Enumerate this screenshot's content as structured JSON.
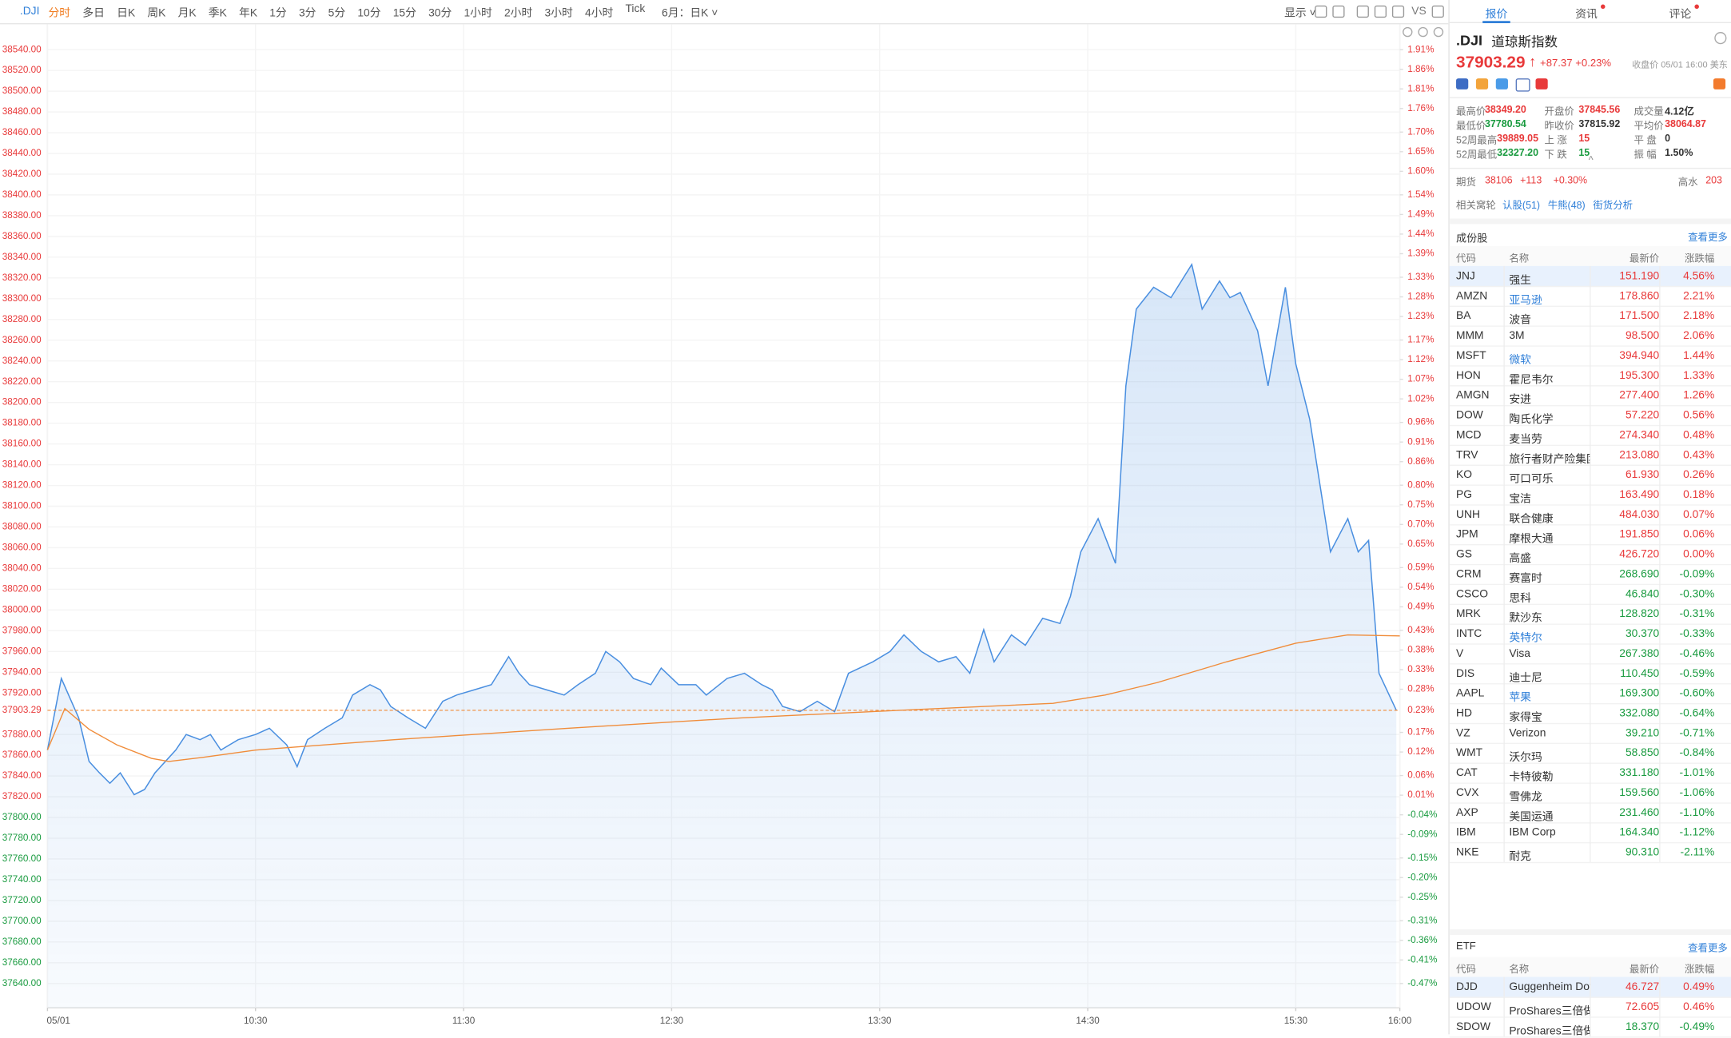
{
  "toolbar": {
    "symbol": ".DJI",
    "periods": [
      "分时",
      "多日",
      "日K",
      "周K",
      "月K",
      "季K",
      "年K",
      "1分",
      "3分",
      "5分",
      "10分",
      "15分",
      "30分",
      "1小时",
      "2小时",
      "3小时",
      "4小时",
      "Tick"
    ],
    "active_period": 0,
    "compare": "6月：日K",
    "display": "显示",
    "vs": "VS"
  },
  "chart_data": {
    "type": "line",
    "x": [
      0,
      4,
      9,
      12,
      15,
      18,
      21,
      25,
      28,
      31,
      34,
      37,
      40,
      44,
      47,
      50,
      55,
      60,
      64,
      69,
      72,
      75,
      80,
      85,
      88,
      93,
      96,
      99,
      104,
      109,
      114,
      118,
      123,
      128,
      133,
      136,
      139,
      144,
      149,
      153,
      158,
      161,
      165,
      169,
      174,
      177,
      182,
      187,
      190,
      196,
      201,
      206,
      209,
      212,
      217,
      222,
      227,
      231,
      238,
      243,
      247,
      252,
      257,
      262,
      266,
      270,
      273,
      278,
      282,
      287,
      292,
      295,
      298,
      303,
      308,
      311,
      314,
      319,
      324,
      330,
      333,
      338,
      341,
      344,
      349,
      352,
      357,
      360,
      364,
      367,
      370,
      375,
      378,
      381,
      384,
      389
    ],
    "series": [
      {
        "color": "#4a8fe0",
        "values": [
          37865,
          37934,
          37896,
          37854,
          37843,
          37833,
          37843,
          37822,
          37827,
          37843,
          37854,
          37865,
          37880,
          37875,
          37880,
          37865,
          37875,
          37880,
          37886,
          37870,
          37849,
          37875,
          37886,
          37896,
          37918,
          37928,
          37923,
          37907,
          37896,
          37886,
          37912,
          37918,
          37923,
          37928,
          37955,
          37939,
          37928,
          37923,
          37918,
          37928,
          37939,
          37960,
          37950,
          37934,
          37928,
          37944,
          37928,
          37928,
          37918,
          37934,
          37939,
          37928,
          37923,
          37907,
          37902,
          37912,
          37902,
          37939,
          37950,
          37960,
          37976,
          37960,
          37950,
          37955,
          37939,
          37981,
          37950,
          37976,
          37966,
          37992,
          37987,
          38013,
          38056,
          38088,
          38045,
          38216,
          38290,
          38311,
          38301,
          38333,
          38290,
          38317,
          38301,
          38306,
          38269,
          38216,
          38311,
          38237,
          38184,
          38120,
          38056,
          38088,
          38056,
          38067,
          37939,
          37903.29
        ]
      },
      {
        "color": "#f08c3a",
        "x": [
          0,
          5,
          12,
          20,
          30,
          35,
          45,
          60,
          100,
          150,
          200,
          250,
          290,
          305,
          320,
          340,
          360,
          375,
          390
        ],
        "values": [
          37865,
          37905,
          37885,
          37870,
          37857,
          37854,
          37858,
          37865,
          37875,
          37886,
          37896,
          37904,
          37910,
          37918,
          37930,
          37950,
          37968,
          37976,
          37975
        ]
      }
    ],
    "xlim": [
      0,
      390
    ],
    "xticks": [
      {
        "value": 0,
        "label": "05/01"
      },
      {
        "value": 60,
        "label": "10:30"
      },
      {
        "value": 120,
        "label": "11:30"
      },
      {
        "value": 180,
        "label": "12:30"
      },
      {
        "value": 240,
        "label": "13:30"
      },
      {
        "value": 300,
        "label": "14:30"
      },
      {
        "value": 360,
        "label": "15:30"
      },
      {
        "value": 390,
        "label": "16:00"
      }
    ],
    "ylim": [
      37640,
      38540
    ],
    "yticks": [
      {
        "value": 38540,
        "label": "38540.00"
      },
      {
        "value": 38520,
        "label": "38520.00"
      },
      {
        "value": 38500,
        "label": "38500.00"
      },
      {
        "value": 38480,
        "label": "38480.00"
      },
      {
        "value": 38460,
        "label": "38460.00"
      },
      {
        "value": 38440,
        "label": "38440.00"
      },
      {
        "value": 38420,
        "label": "38420.00"
      },
      {
        "value": 38400,
        "label": "38400.00"
      },
      {
        "value": 38380,
        "label": "38380.00"
      },
      {
        "value": 38360,
        "label": "38360.00"
      },
      {
        "value": 38340,
        "label": "38340.00"
      },
      {
        "value": 38320,
        "label": "38320.00"
      },
      {
        "value": 38300,
        "label": "38300.00"
      },
      {
        "value": 38280,
        "label": "38280.00"
      },
      {
        "value": 38260,
        "label": "38260.00"
      },
      {
        "value": 38240,
        "label": "38240.00"
      },
      {
        "value": 38220,
        "label": "38220.00"
      },
      {
        "value": 38200,
        "label": "38200.00"
      },
      {
        "value": 38180,
        "label": "38180.00"
      },
      {
        "value": 38160,
        "label": "38160.00"
      },
      {
        "value": 38140,
        "label": "38140.00"
      },
      {
        "value": 38120,
        "label": "38120.00"
      },
      {
        "value": 38100,
        "label": "38100.00"
      },
      {
        "value": 38080,
        "label": "38080.00"
      },
      {
        "value": 38060,
        "label": "38060.00"
      },
      {
        "value": 38040,
        "label": "38040.00"
      },
      {
        "value": 38020,
        "label": "38020.00"
      },
      {
        "value": 38000,
        "label": "38000.00"
      },
      {
        "value": 37980,
        "label": "37980.00"
      },
      {
        "value": 37960,
        "label": "37960.00"
      },
      {
        "value": 37940,
        "label": "37940.00"
      },
      {
        "value": 37920,
        "label": "37920.00"
      },
      {
        "value": 37880,
        "label": "37880.00"
      },
      {
        "value": 37860,
        "label": "37860.00"
      },
      {
        "value": 37840,
        "label": "37840.00"
      },
      {
        "value": 37820,
        "label": "37820.00"
      },
      {
        "value": 37800,
        "label": "37800.00"
      },
      {
        "value": 37780,
        "label": "37780.00"
      },
      {
        "value": 37760,
        "label": "37760.00"
      },
      {
        "value": 37740,
        "label": "37740.00"
      },
      {
        "value": 37720,
        "label": "37720.00"
      },
      {
        "value": 37700,
        "label": "37700.00"
      },
      {
        "value": 37680,
        "label": "37680.00"
      },
      {
        "value": 37660,
        "label": "37660.00"
      },
      {
        "value": 37640,
        "label": "37640.00"
      }
    ],
    "y2lim": [
      -0.47,
      1.91
    ],
    "y2ticks": [
      {
        "value": 1.91,
        "label": "1.91%"
      },
      {
        "value": 1.86,
        "label": "1.86%"
      },
      {
        "value": 1.81,
        "label": "1.81%"
      },
      {
        "value": 1.76,
        "label": "1.76%"
      },
      {
        "value": 1.7,
        "label": "1.70%"
      },
      {
        "value": 1.65,
        "label": "1.65%"
      },
      {
        "value": 1.6,
        "label": "1.60%"
      },
      {
        "value": 1.54,
        "label": "1.54%"
      },
      {
        "value": 1.49,
        "label": "1.49%"
      },
      {
        "value": 1.44,
        "label": "1.44%"
      },
      {
        "value": 1.39,
        "label": "1.39%"
      },
      {
        "value": 1.33,
        "label": "1.33%"
      },
      {
        "value": 1.28,
        "label": "1.28%"
      },
      {
        "value": 1.23,
        "label": "1.23%"
      },
      {
        "value": 1.17,
        "label": "1.17%"
      },
      {
        "value": 1.12,
        "label": "1.12%"
      },
      {
        "value": 1.07,
        "label": "1.07%"
      },
      {
        "value": 1.02,
        "label": "1.02%"
      },
      {
        "value": 0.96,
        "label": "0.96%"
      },
      {
        "value": 0.91,
        "label": "0.91%"
      },
      {
        "value": 0.86,
        "label": "0.86%"
      },
      {
        "value": 0.8,
        "label": "0.80%"
      },
      {
        "value": 0.75,
        "label": "0.75%"
      },
      {
        "value": 0.7,
        "label": "0.70%"
      },
      {
        "value": 0.65,
        "label": "0.65%"
      },
      {
        "value": 0.59,
        "label": "0.59%"
      },
      {
        "value": 0.54,
        "label": "0.54%"
      },
      {
        "value": 0.49,
        "label": "0.49%"
      },
      {
        "value": 0.43,
        "label": "0.43%"
      },
      {
        "value": 0.38,
        "label": "0.38%"
      },
      {
        "value": 0.33,
        "label": "0.33%"
      },
      {
        "value": 0.28,
        "label": "0.28%"
      },
      {
        "value": 0.17,
        "label": "0.17%"
      },
      {
        "value": 0.12,
        "label": "0.12%"
      },
      {
        "value": 0.06,
        "label": "0.06%"
      },
      {
        "value": 0.01,
        "label": "0.01%"
      },
      {
        "value": -0.04,
        "label": "-0.04%"
      },
      {
        "value": -0.09,
        "label": "-0.09%"
      },
      {
        "value": -0.15,
        "label": "-0.15%"
      },
      {
        "value": -0.2,
        "label": "-0.20%"
      },
      {
        "value": -0.25,
        "label": "-0.25%"
      },
      {
        "value": -0.31,
        "label": "-0.31%"
      },
      {
        "value": -0.36,
        "label": "-0.36%"
      },
      {
        "value": -0.41,
        "label": "-0.41%"
      },
      {
        "value": -0.47,
        "label": "-0.47%"
      }
    ],
    "reference": {
      "value": 37903.29,
      "label": "37903.29",
      "pct_label": "0.23%",
      "color": "#f08c3a"
    },
    "grid": true,
    "area_fill": true
  },
  "quote": {
    "tabs": [
      "报价",
      "资讯",
      "评论"
    ],
    "symbol": ".DJI",
    "name": "道琼斯指数",
    "price": "37903.29",
    "change": "+87.37",
    "change_pct": "+0.23%",
    "status": "收盘价 05/01 16:00 美东",
    "stats": [
      {
        "label": "最高价",
        "value": "38349.20",
        "tone": "up"
      },
      {
        "label": "开盘价",
        "value": "37845.56",
        "tone": "up"
      },
      {
        "label": "成交量",
        "value": "4.12亿",
        "tone": "flat"
      },
      {
        "label": "最低价",
        "value": "37780.54",
        "tone": "down"
      },
      {
        "label": "昨收价",
        "value": "37815.92",
        "tone": "flat"
      },
      {
        "label": "平均价",
        "value": "38064.87",
        "tone": "up"
      },
      {
        "label": "52周最高",
        "value": "39889.05",
        "tone": "up"
      },
      {
        "label": "上 涨",
        "value": "15",
        "tone": "up"
      },
      {
        "label": "平 盘",
        "value": "0",
        "tone": "flat"
      },
      {
        "label": "52周最低",
        "value": "32327.20",
        "tone": "down"
      },
      {
        "label": "下 跌",
        "value": "15",
        "tone": "down"
      },
      {
        "label": "振 幅",
        "value": "1.50%",
        "tone": "flat"
      }
    ],
    "future": {
      "label": "期货",
      "value": "38106",
      "change": "+113",
      "change_pct": "+0.30%",
      "premium_label": "高水",
      "premium": "203"
    },
    "warrants": {
      "label": "相关窝轮",
      "links": [
        "认股(51)",
        "牛熊(48)",
        "街货分析"
      ]
    }
  },
  "constituents": {
    "title": "成份股",
    "more": "查看更多",
    "columns": [
      "代码",
      "名称",
      "最新价",
      "涨跌幅"
    ],
    "rows": [
      {
        "code": "JNJ",
        "name": "强生",
        "price": "151.190",
        "change": "4.56%"
      },
      {
        "code": "AMZN",
        "name": "亚马逊",
        "price": "178.860",
        "change": "2.21%",
        "link": true
      },
      {
        "code": "BA",
        "name": "波音",
        "price": "171.500",
        "change": "2.18%"
      },
      {
        "code": "MMM",
        "name": "3M",
        "price": "98.500",
        "change": "2.06%"
      },
      {
        "code": "MSFT",
        "name": "微软",
        "price": "394.940",
        "change": "1.44%",
        "link": true
      },
      {
        "code": "HON",
        "name": "霍尼韦尔",
        "price": "195.300",
        "change": "1.33%"
      },
      {
        "code": "AMGN",
        "name": "安进",
        "price": "277.400",
        "change": "1.26%"
      },
      {
        "code": "DOW",
        "name": "陶氏化学",
        "price": "57.220",
        "change": "0.56%"
      },
      {
        "code": "MCD",
        "name": "麦当劳",
        "price": "274.340",
        "change": "0.48%"
      },
      {
        "code": "TRV",
        "name": "旅行者财产险集团",
        "price": "213.080",
        "change": "0.43%"
      },
      {
        "code": "KO",
        "name": "可口可乐",
        "price": "61.930",
        "change": "0.26%"
      },
      {
        "code": "PG",
        "name": "宝洁",
        "price": "163.490",
        "change": "0.18%"
      },
      {
        "code": "UNH",
        "name": "联合健康",
        "price": "484.030",
        "change": "0.07%"
      },
      {
        "code": "JPM",
        "name": "摩根大通",
        "price": "191.850",
        "change": "0.06%"
      },
      {
        "code": "GS",
        "name": "高盛",
        "price": "426.720",
        "change": "0.00%"
      },
      {
        "code": "CRM",
        "name": "赛富时",
        "price": "268.690",
        "change": "-0.09%"
      },
      {
        "code": "CSCO",
        "name": "思科",
        "price": "46.840",
        "change": "-0.30%"
      },
      {
        "code": "MRK",
        "name": "默沙东",
        "price": "128.820",
        "change": "-0.31%"
      },
      {
        "code": "INTC",
        "name": "英特尔",
        "price": "30.370",
        "change": "-0.33%",
        "link": true
      },
      {
        "code": "V",
        "name": "Visa",
        "price": "267.380",
        "change": "-0.46%"
      },
      {
        "code": "DIS",
        "name": "迪士尼",
        "price": "110.450",
        "change": "-0.59%"
      },
      {
        "code": "AAPL",
        "name": "苹果",
        "price": "169.300",
        "change": "-0.60%",
        "link": true
      },
      {
        "code": "HD",
        "name": "家得宝",
        "price": "332.080",
        "change": "-0.64%"
      },
      {
        "code": "VZ",
        "name": "Verizon",
        "price": "39.210",
        "change": "-0.71%"
      },
      {
        "code": "WMT",
        "name": "沃尔玛",
        "price": "58.850",
        "change": "-0.84%"
      },
      {
        "code": "CAT",
        "name": "卡特彼勒",
        "price": "331.180",
        "change": "-1.01%"
      },
      {
        "code": "CVX",
        "name": "雪佛龙",
        "price": "159.560",
        "change": "-1.06%"
      },
      {
        "code": "AXP",
        "name": "美国运通",
        "price": "231.460",
        "change": "-1.10%"
      },
      {
        "code": "IBM",
        "name": "IBM Corp",
        "price": "164.340",
        "change": "-1.12%"
      },
      {
        "code": "NKE",
        "name": "耐克",
        "price": "90.310",
        "change": "-2.11%"
      }
    ]
  },
  "etf": {
    "title": "ETF",
    "more": "查看更多",
    "columns": [
      "代码",
      "名称",
      "最新价",
      "涨跌幅"
    ],
    "rows": [
      {
        "code": "DJD",
        "name": "Guggenheim Dow",
        "price": "46.727",
        "change": "0.49%"
      },
      {
        "code": "UDOW",
        "name": "ProShares三倍做多",
        "price": "72.605",
        "change": "0.46%"
      },
      {
        "code": "SDOW",
        "name": "ProShares三倍做空",
        "price": "18.370",
        "change": "-0.49%"
      }
    ]
  }
}
